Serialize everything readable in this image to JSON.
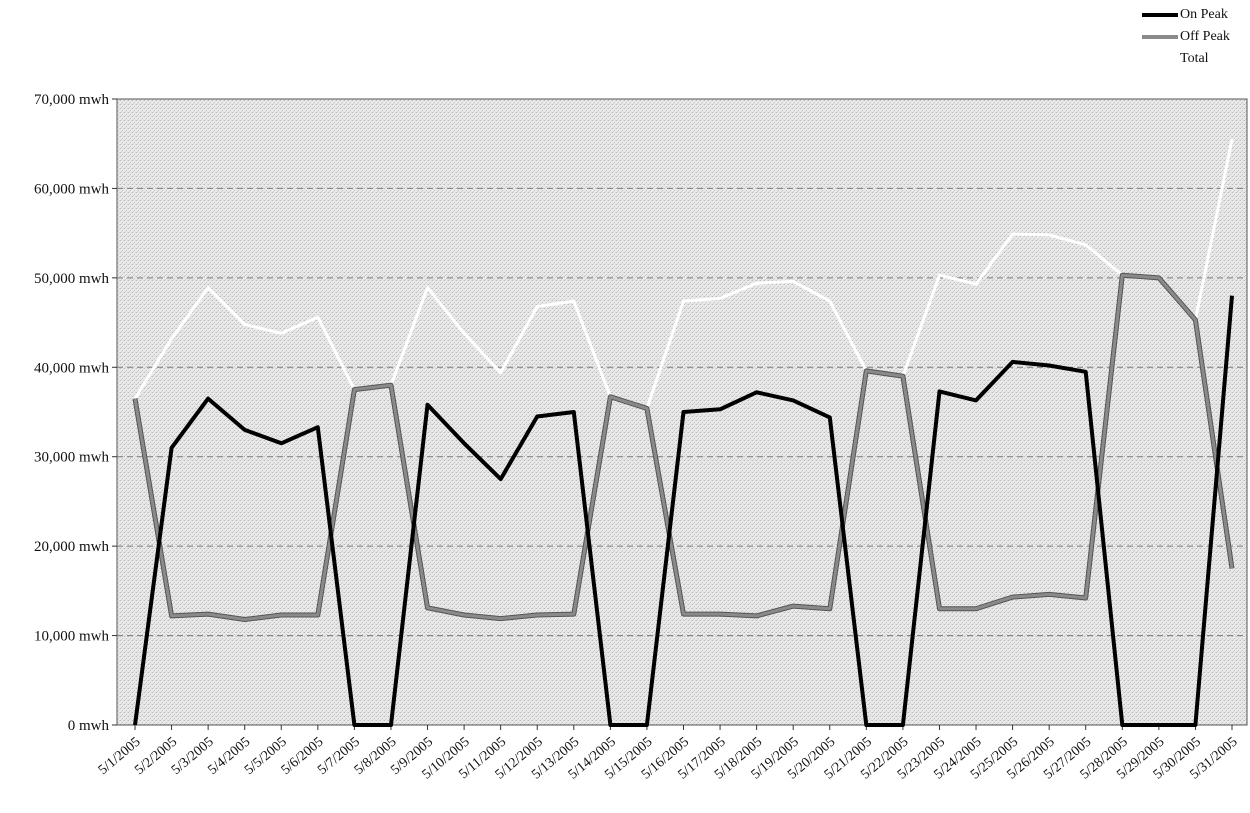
{
  "chart_data": {
    "type": "line",
    "title": "",
    "xlabel": "",
    "ylabel": "",
    "categories": [
      "5/1/2005",
      "5/2/2005",
      "5/3/2005",
      "5/4/2005",
      "5/5/2005",
      "5/6/2005",
      "5/7/2005",
      "5/8/2005",
      "5/9/2005",
      "5/10/2005",
      "5/11/2005",
      "5/12/2005",
      "5/13/2005",
      "5/14/2005",
      "5/15/2005",
      "5/16/2005",
      "5/17/2005",
      "5/18/2005",
      "5/19/2005",
      "5/20/2005",
      "5/21/2005",
      "5/22/2005",
      "5/23/2005",
      "5/24/2005",
      "5/25/2005",
      "5/26/2005",
      "5/27/2005",
      "5/28/2005",
      "5/29/2005",
      "5/30/2005",
      "5/31/2005"
    ],
    "ylim": [
      0,
      70000
    ],
    "yticks": [
      0,
      10000,
      20000,
      30000,
      40000,
      50000,
      60000,
      70000
    ],
    "ytick_labels": [
      "0 mwh",
      "10,000 mwh",
      "20,000 mwh",
      "30,000 mwh",
      "40,000 mwh",
      "50,000 mwh",
      "60,000 mwh",
      "70,000 mwh"
    ],
    "grid": true,
    "legend_position": "top-right",
    "series": [
      {
        "name": "On Peak",
        "color": "#000000",
        "values": [
          0,
          31000,
          36500,
          33000,
          31500,
          33300,
          0,
          0,
          35800,
          31500,
          27500,
          34500,
          35000,
          0,
          0,
          35000,
          35300,
          37200,
          36300,
          34400,
          0,
          0,
          37300,
          36300,
          40600,
          40200,
          39500,
          0,
          0,
          0,
          48000
        ]
      },
      {
        "name": "Off Peak",
        "color": "#8a8a8a",
        "values": [
          36500,
          12200,
          12400,
          11800,
          12300,
          12300,
          37500,
          38000,
          13100,
          12300,
          11900,
          12300,
          12400,
          36700,
          35400,
          12400,
          12400,
          12200,
          13300,
          13000,
          39600,
          39000,
          13000,
          13000,
          14300,
          14600,
          14200,
          50300,
          50000,
          45300,
          17500
        ]
      },
      {
        "name": "Total",
        "color": "#ffffff",
        "values": [
          36500,
          43200,
          48900,
          44800,
          43800,
          45600,
          37500,
          38000,
          48900,
          43800,
          39400,
          46800,
          47400,
          36700,
          35400,
          47400,
          47700,
          49400,
          49600,
          47400,
          39600,
          39000,
          50300,
          49300,
          54900,
          54800,
          53700,
          50300,
          50000,
          45300,
          65500
        ]
      }
    ]
  }
}
